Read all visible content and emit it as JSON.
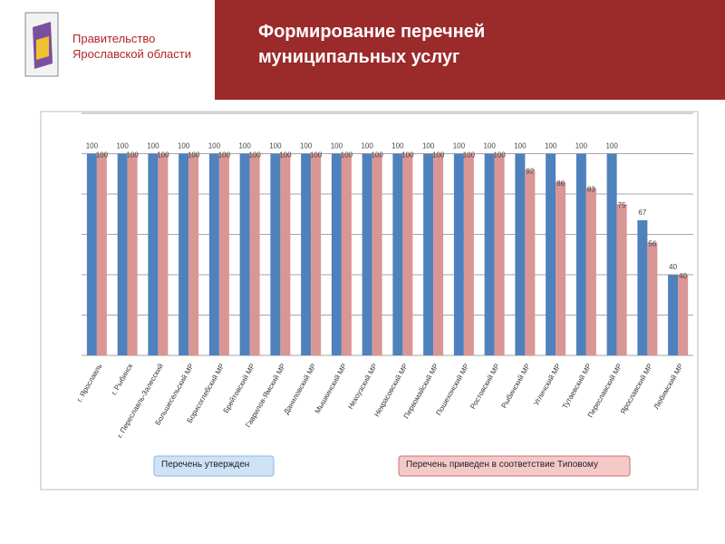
{
  "header": {
    "org": "Правительство Ярославской области",
    "title": "Формирование перечней муниципальных услуг"
  },
  "chart_data": {
    "type": "bar",
    "categories": [
      "г. Ярославль",
      "г. Рыбинск",
      "г. Переславль-Залесский",
      "Большесельский МР",
      "Борисоглебский МР",
      "Брейтовский МР",
      "Гаврилов-Ямский МР",
      "Даниловский МР",
      "Мышкинский МР",
      "Некоузский МР",
      "Некрасовский МР",
      "Первомайский МР",
      "Пошехонский МР",
      "Ростовский МР",
      "Рыбинский МР",
      "Угличский МР",
      "Тутаевский МР",
      "Переславский МР",
      "Ярославский МР",
      "Любимский МР"
    ],
    "series": [
      {
        "name": "Перечень утвержден",
        "color": "#4f81bd",
        "values": [
          100,
          100,
          100,
          100,
          100,
          100,
          100,
          100,
          100,
          100,
          100,
          100,
          100,
          100,
          100,
          100,
          100,
          100,
          67,
          40
        ]
      },
      {
        "name": "Перечень приведен в соответствие Типовому",
        "color": "#d99694",
        "values": [
          100,
          100,
          100,
          100,
          100,
          100,
          100,
          100,
          100,
          100,
          100,
          100,
          100,
          100,
          92,
          86,
          83,
          75,
          56,
          40
        ]
      }
    ],
    "ylim": [
      0,
      120
    ],
    "yticks": [
      0,
      20,
      40,
      60,
      80,
      100,
      120
    ],
    "grid": true
  }
}
